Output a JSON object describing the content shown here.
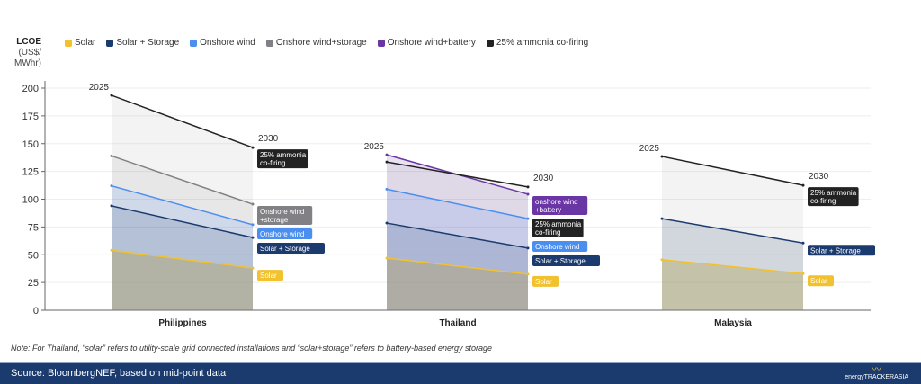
{
  "chart_data": {
    "type": "area",
    "title": "",
    "ylabel": {
      "bold": "LCOE",
      "unit1": "(US$/",
      "unit2": "MWhr)"
    },
    "ylim": [
      0,
      200
    ],
    "yticks": [
      0,
      25,
      50,
      75,
      100,
      125,
      150,
      175,
      200
    ],
    "grid": true,
    "legend_position": "top-left",
    "start_label": "2025",
    "end_label": "2030",
    "series_defs": [
      {
        "key": "solar",
        "name": "Solar",
        "color": "#f2c12e"
      },
      {
        "key": "ss",
        "name": "Solar + Storage",
        "color": "#1b3a6d"
      },
      {
        "key": "wind",
        "name": "Onshore wind",
        "color": "#4a8ef0"
      },
      {
        "key": "ws",
        "name": "Onshore wind+storage",
        "color": "#808085"
      },
      {
        "key": "wb",
        "name": "Onshore wind+battery",
        "color": "#6a35a5"
      },
      {
        "key": "amm",
        "name": "25% ammonia co-firing",
        "color": "#222222"
      }
    ],
    "categories": [
      {
        "name": "Philippines",
        "series": [
          {
            "key": "amm",
            "values": [
              193.5,
              146.5
            ],
            "label": [
              "25% ammonia",
              "co-firing"
            ]
          },
          {
            "key": "ws",
            "values": [
              139,
              95.5
            ],
            "label": [
              "Onshore wind",
              "+storage"
            ]
          },
          {
            "key": "wind",
            "values": [
              112,
              77
            ],
            "label": [
              "Onshore wind"
            ]
          },
          {
            "key": "ss",
            "values": [
              94,
              65.5
            ],
            "label": [
              "Solar + Storage"
            ]
          },
          {
            "key": "solar",
            "values": [
              54,
              38
            ],
            "label": [
              "Solar"
            ]
          }
        ]
      },
      {
        "name": "Thailand",
        "series": [
          {
            "key": "wb",
            "values": [
              140,
              104.5
            ],
            "label": [
              "onshore wind",
              "+battery"
            ]
          },
          {
            "key": "amm",
            "values": [
              133.5,
              111
            ],
            "label": [
              "25% ammonia",
              "co-firing"
            ]
          },
          {
            "key": "wind",
            "values": [
              109,
              82.5
            ],
            "label": [
              "Onshore wind"
            ]
          },
          {
            "key": "ss",
            "values": [
              78.5,
              56
            ],
            "label": [
              "Solar + Storage"
            ]
          },
          {
            "key": "solar",
            "values": [
              47,
              32.5
            ],
            "label": [
              "Solar"
            ]
          }
        ]
      },
      {
        "name": "Malaysia",
        "series": [
          {
            "key": "amm",
            "values": [
              138.5,
              112.5
            ],
            "label": [
              "25% ammonia",
              "co-firing"
            ]
          },
          {
            "key": "ss",
            "values": [
              82.5,
              60.5
            ],
            "label": [
              "Solar + Storage"
            ]
          },
          {
            "key": "solar",
            "values": [
              45.5,
              33
            ],
            "label": [
              "Solar"
            ]
          }
        ]
      }
    ]
  },
  "note": "Note: For Thailand, “solar” refers to utility-scale grid connected installations and “solar+storage” refers to battery-based energy storage",
  "footer": {
    "source": "Source: BloombergNEF, based on mid-point data",
    "logo": "energyTRACKERASIA"
  }
}
